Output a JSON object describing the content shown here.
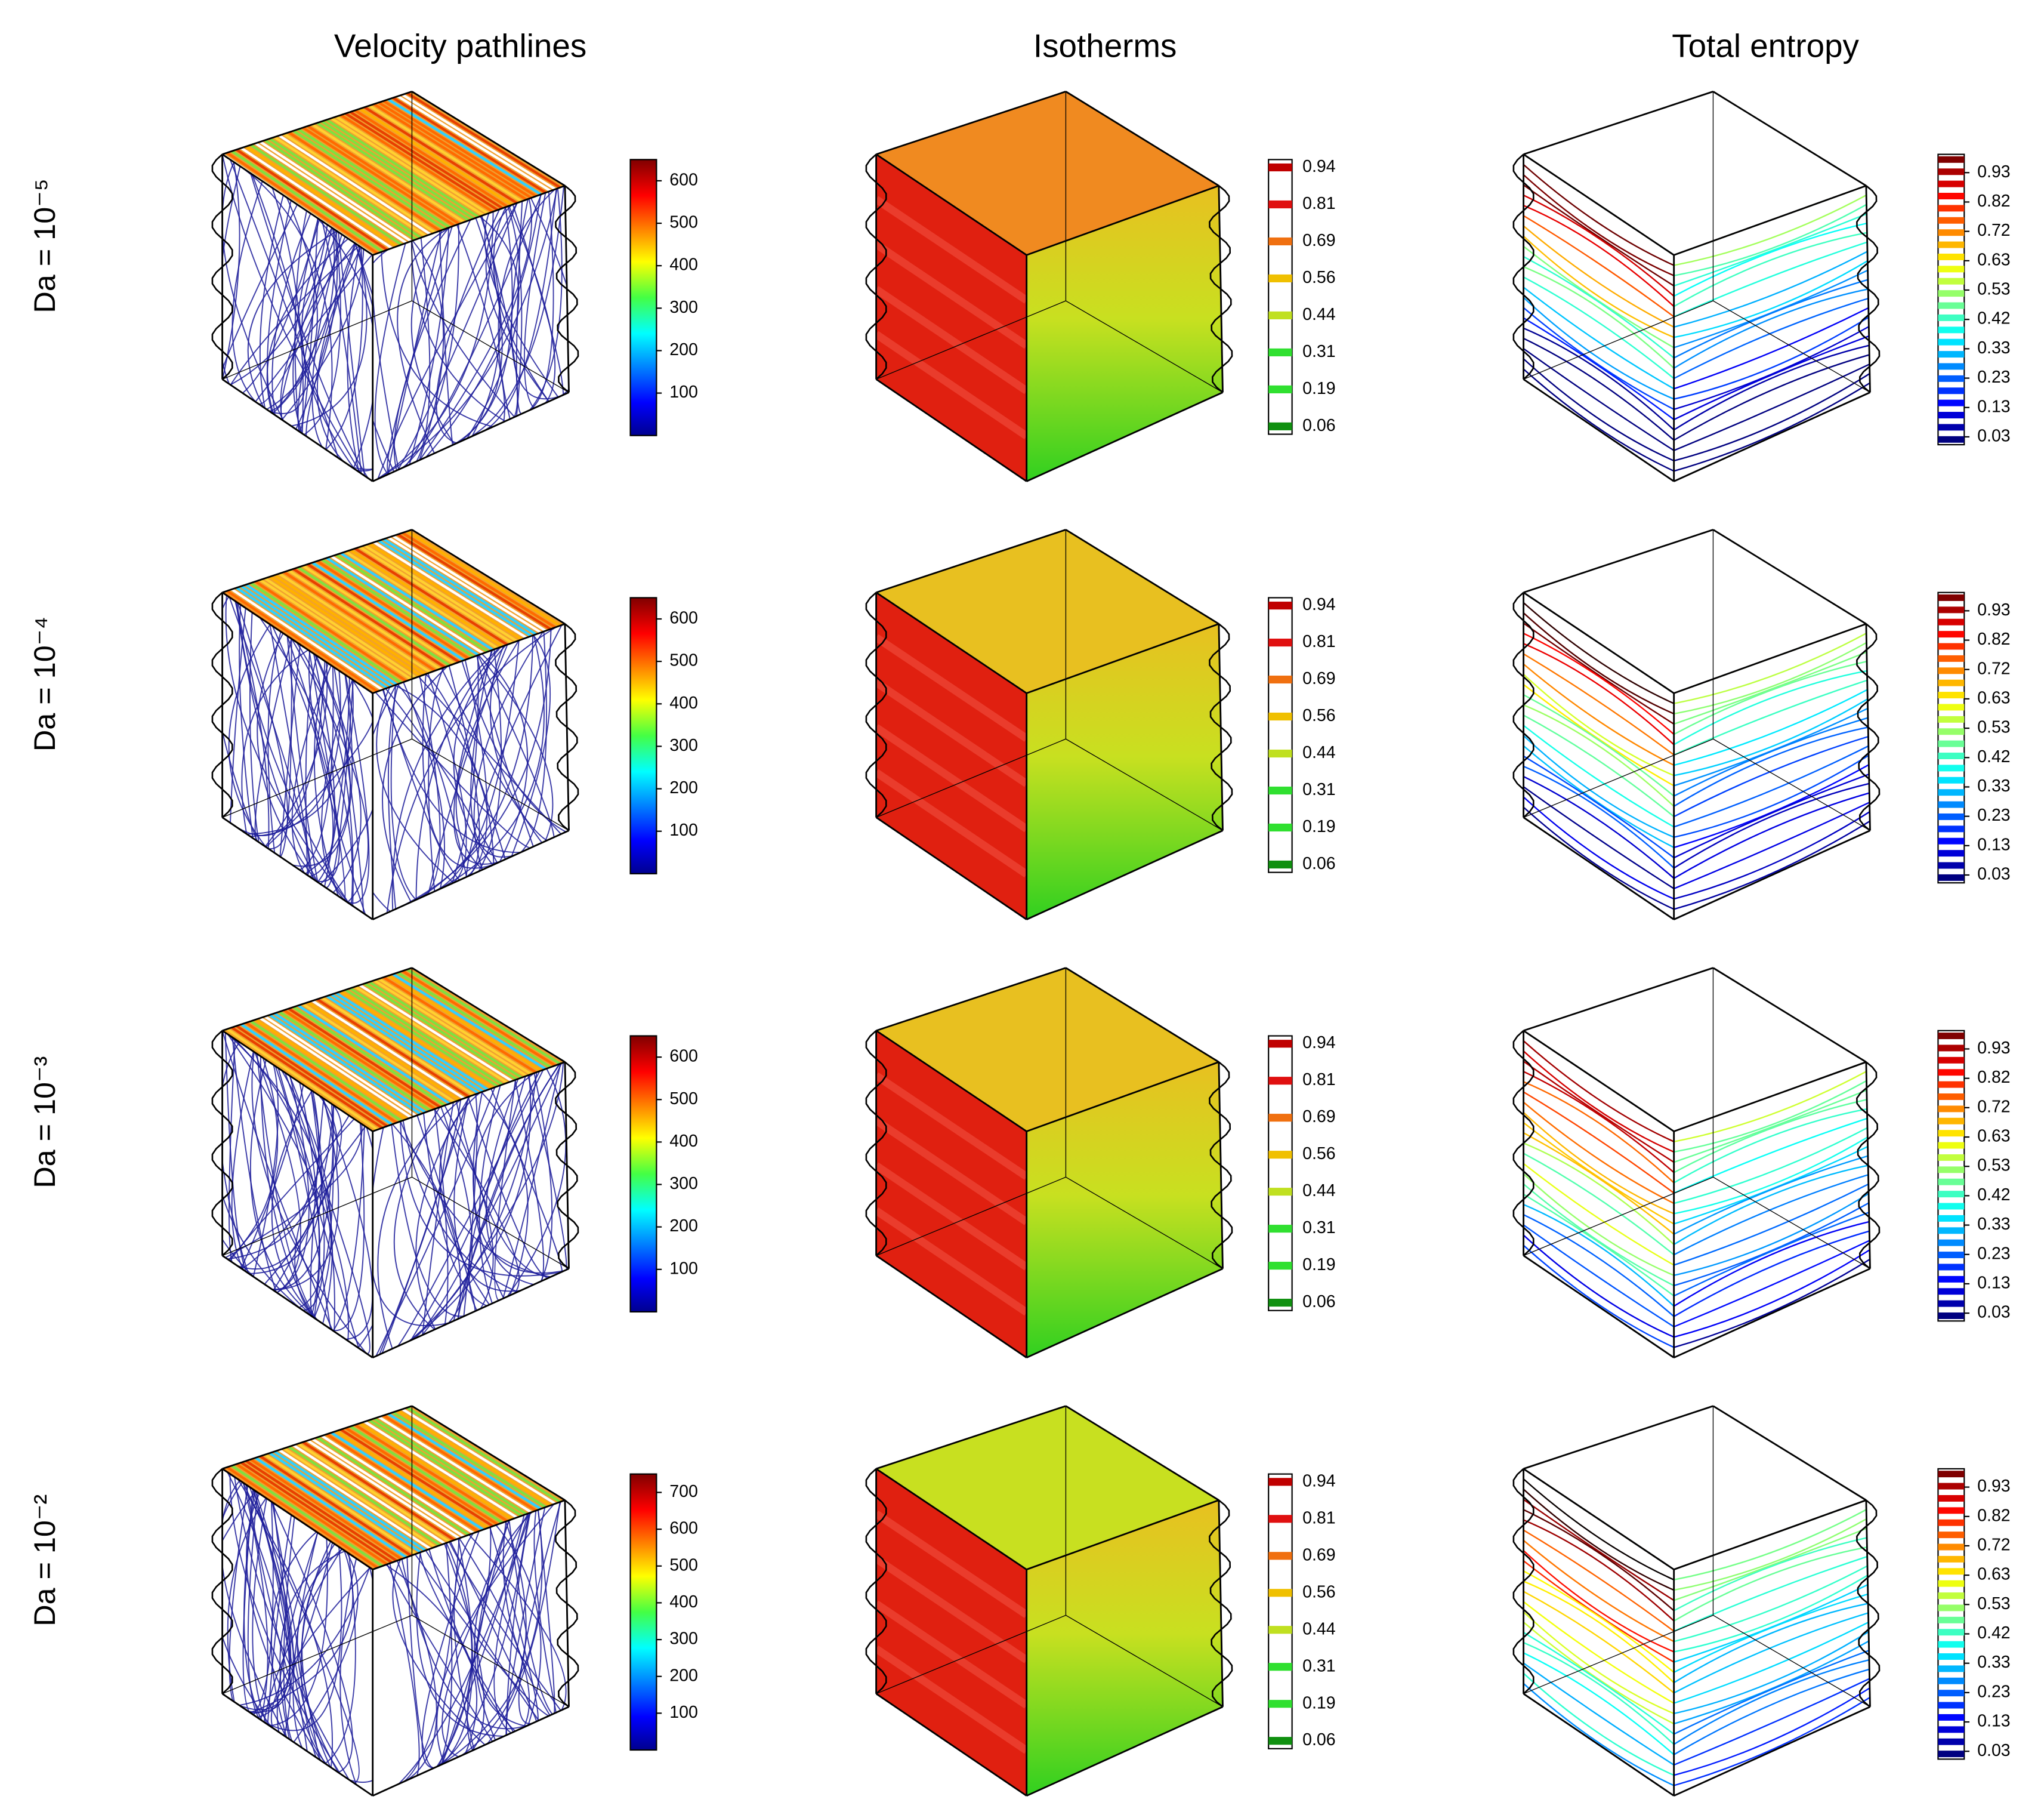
{
  "column_titles": [
    "Velocity pathlines",
    "Isotherms",
    "Total entropy"
  ],
  "rows": [
    {
      "label": "Da = 10⁻⁵",
      "velocity_ticks": [
        100,
        200,
        300,
        400,
        500,
        600
      ],
      "isotherm_ticks": [
        0.94,
        0.81,
        0.69,
        0.56,
        0.44,
        0.31,
        0.19,
        0.06
      ],
      "entropy_ticks": [
        0.93,
        0.82,
        0.72,
        0.63,
        0.53,
        0.42,
        0.33,
        0.23,
        0.13,
        0.03
      ]
    },
    {
      "label": "Da = 10⁻⁴",
      "velocity_ticks": [
        100,
        200,
        300,
        400,
        500,
        600
      ],
      "isotherm_ticks": [
        0.94,
        0.81,
        0.69,
        0.56,
        0.44,
        0.31,
        0.19,
        0.06
      ],
      "entropy_ticks": [
        0.93,
        0.82,
        0.72,
        0.63,
        0.53,
        0.42,
        0.33,
        0.23,
        0.13,
        0.03
      ]
    },
    {
      "label": "Da = 10⁻³",
      "velocity_ticks": [
        100,
        200,
        300,
        400,
        500,
        600
      ],
      "isotherm_ticks": [
        0.94,
        0.81,
        0.69,
        0.56,
        0.44,
        0.31,
        0.19,
        0.06
      ],
      "entropy_ticks": [
        0.93,
        0.82,
        0.72,
        0.63,
        0.53,
        0.42,
        0.33,
        0.23,
        0.13,
        0.03
      ]
    },
    {
      "label": "Da = 10⁻²",
      "velocity_ticks": [
        100,
        200,
        300,
        400,
        500,
        600,
        700
      ],
      "isotherm_ticks": [
        0.94,
        0.81,
        0.69,
        0.56,
        0.44,
        0.31,
        0.19,
        0.06
      ],
      "entropy_ticks": [
        0.93,
        0.82,
        0.72,
        0.63,
        0.53,
        0.42,
        0.33,
        0.23,
        0.13,
        0.03
      ]
    }
  ]
}
